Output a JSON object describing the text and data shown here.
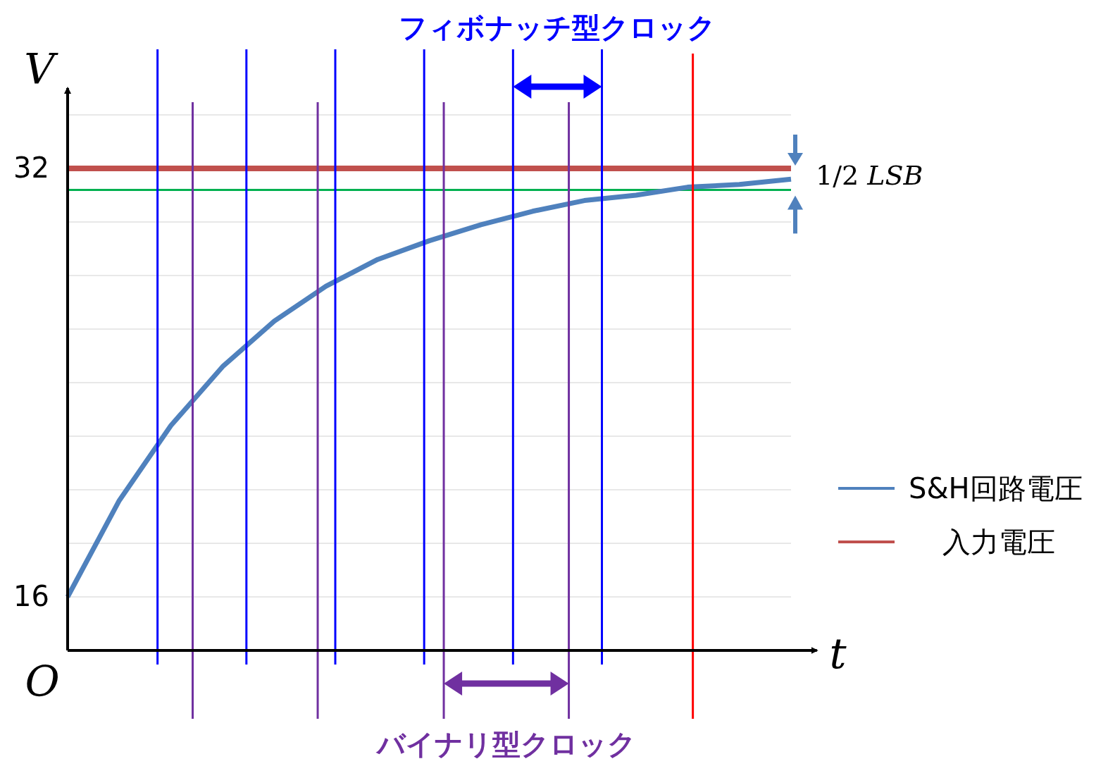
{
  "chart_data": {
    "type": "line",
    "xlabel": "t",
    "ylabel": "V",
    "categories": [
      null,
      null,
      null,
      null,
      null,
      null,
      null,
      null,
      null,
      null,
      null,
      null,
      null,
      null,
      null
    ],
    "ylim": [
      14,
      35
    ],
    "yticks": [
      16,
      {
        "value": 18,
        "label": null
      },
      {
        "value": 20,
        "label": null
      },
      {
        "value": 22,
        "label": null
      },
      {
        "value": 24,
        "label": null
      },
      {
        "value": 26,
        "label": null
      },
      {
        "value": 28,
        "label": null
      },
      {
        "value": 30,
        "label": null
      },
      32,
      {
        "value": 34,
        "label": null
      }
    ],
    "grid": "y",
    "legend": "right",
    "series": [
      {
        "name": "S&H回路電圧",
        "color": "#4f81bd",
        "values": [
          16,
          19.6,
          22.4,
          24.6,
          26.3,
          27.6,
          28.6,
          29.3,
          29.9,
          30.4,
          30.8,
          31.0,
          31.3,
          31.4,
          31.6
        ]
      },
      {
        "name": "入力電圧",
        "color": "#c0504d",
        "values": [
          32,
          32,
          32,
          32,
          32,
          32,
          32,
          32,
          32,
          32,
          32,
          32,
          32,
          32,
          32
        ]
      }
    ],
    "ref_lines": [
      {
        "axis": "y",
        "value": 31.2,
        "color": "#00b050"
      }
    ],
    "annotations": [
      "フィボナッチ型クロック",
      "バイナリ型クロック",
      "1/2 LSB",
      "O"
    ]
  }
}
